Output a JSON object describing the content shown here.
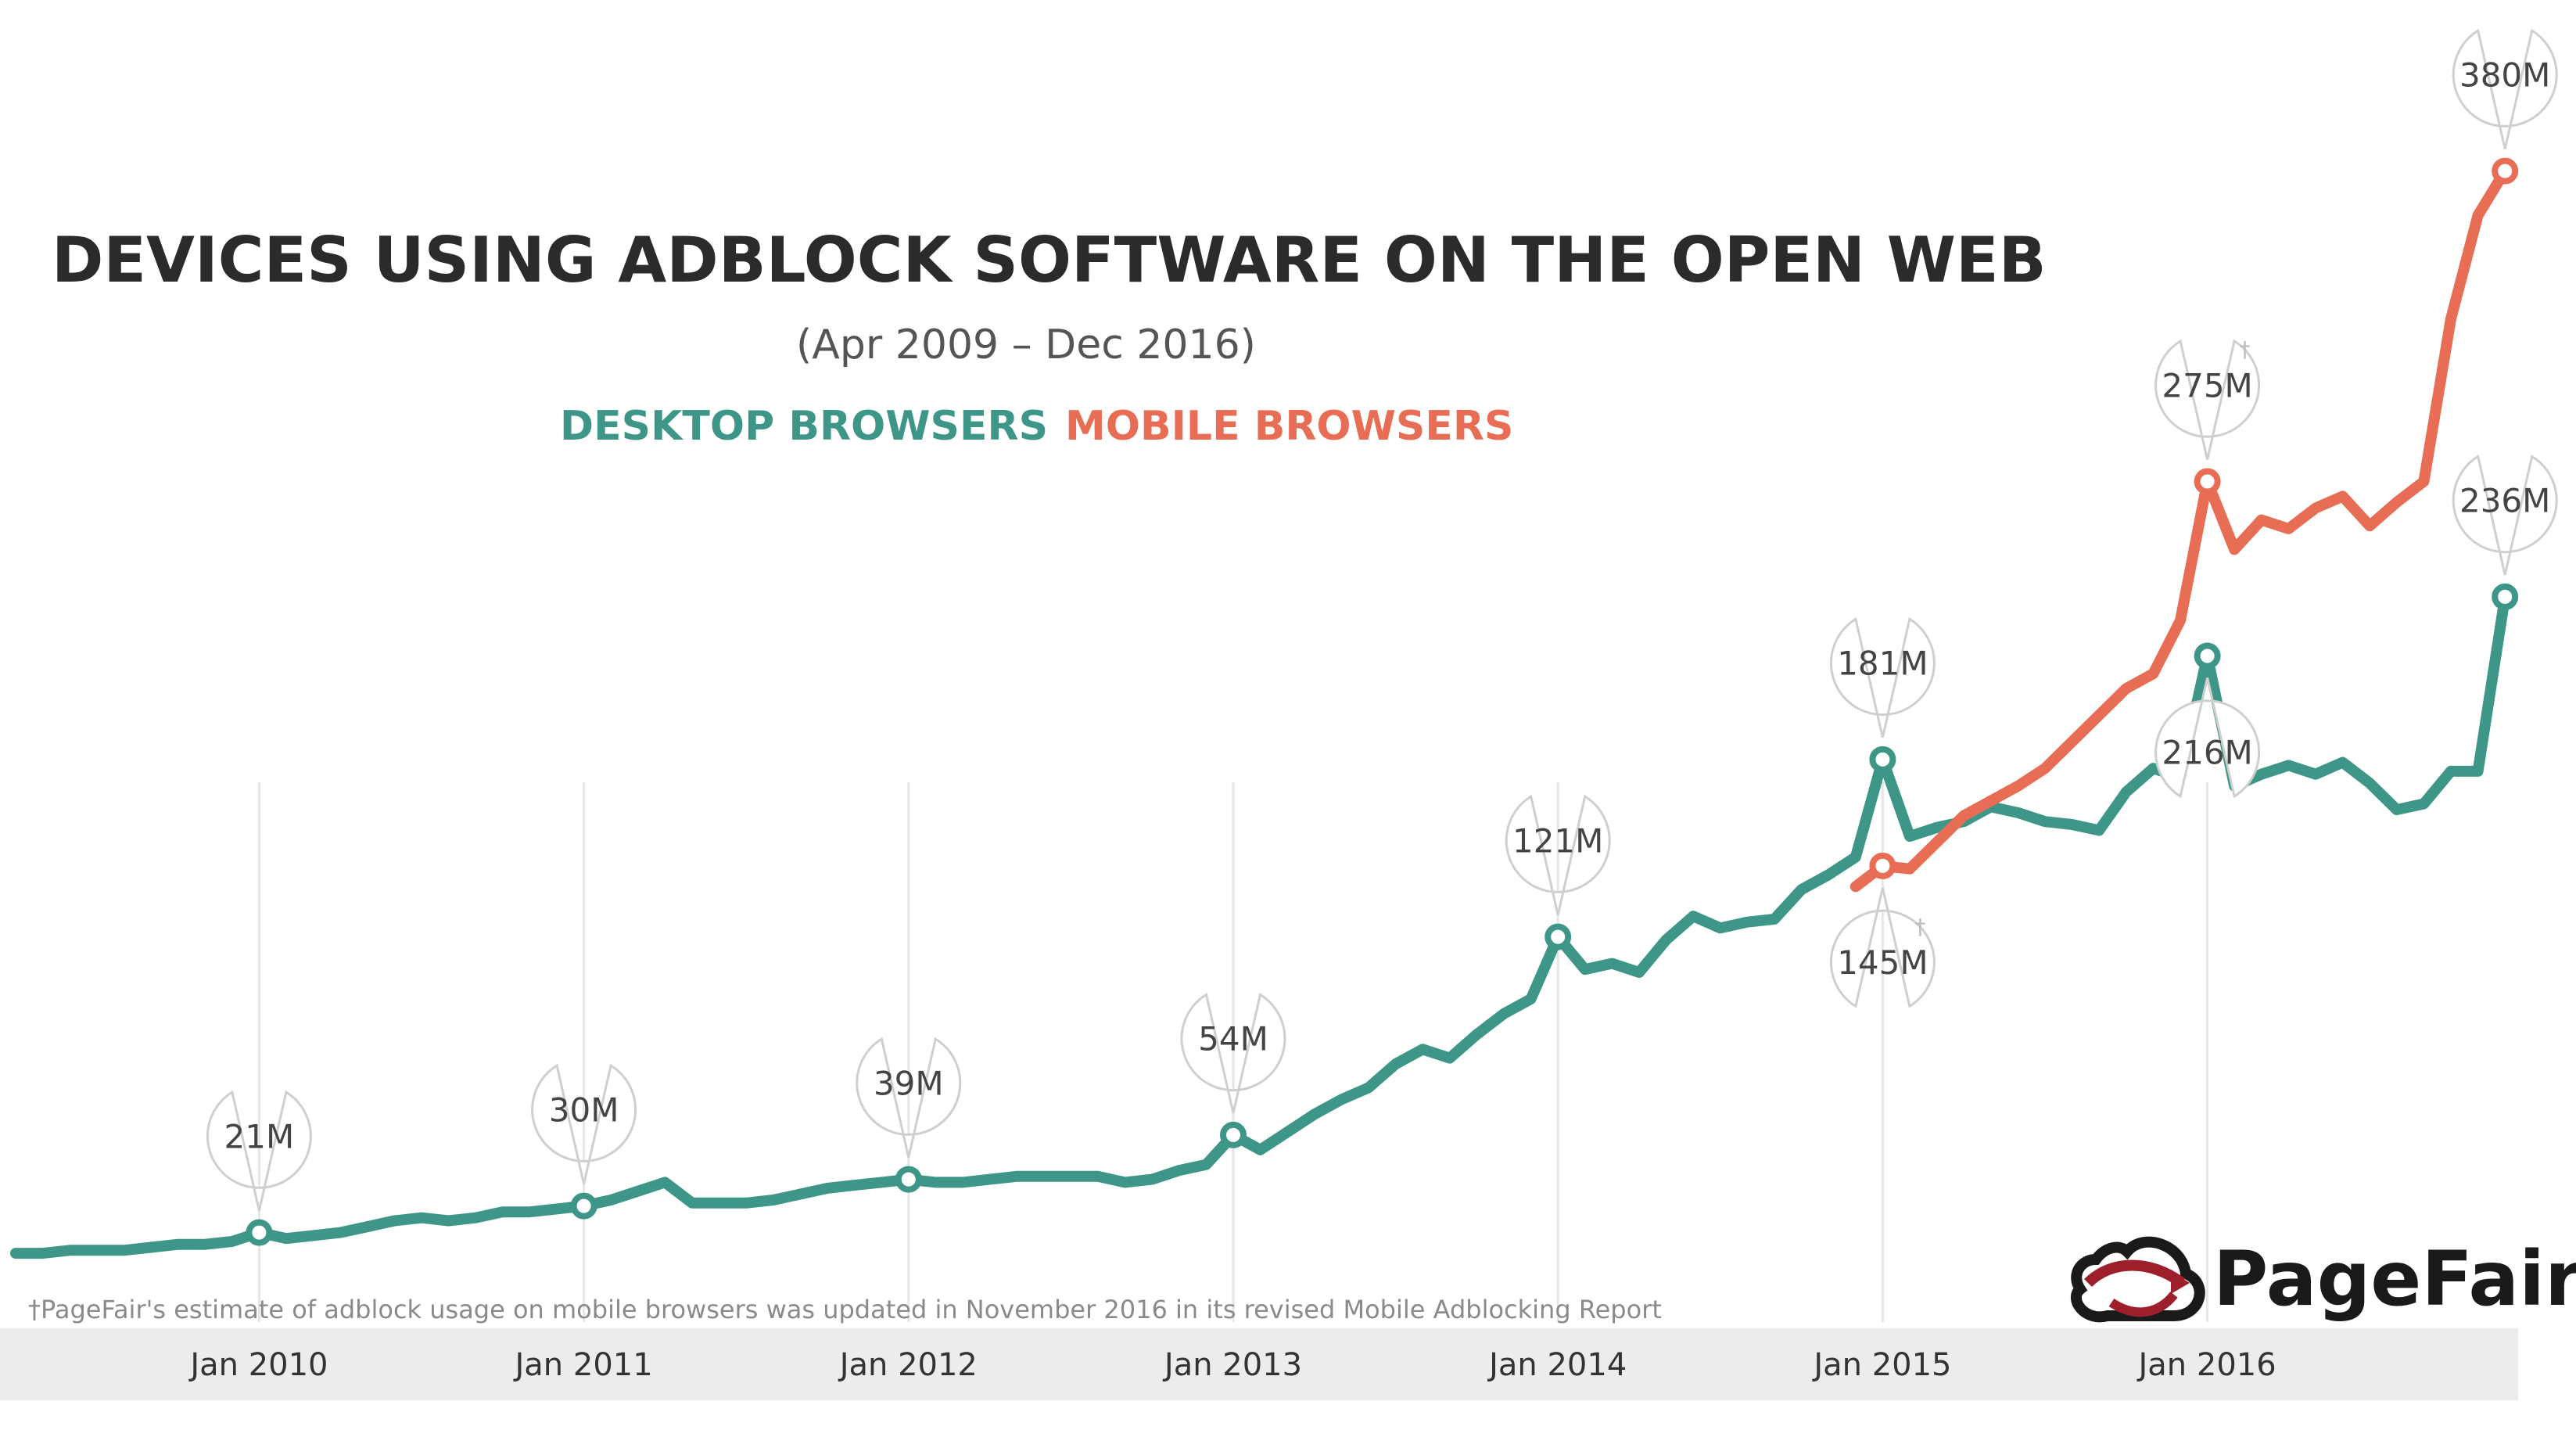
{
  "chart_data": {
    "type": "line",
    "title": "DEVICES USING ADBLOCK SOFTWARE ON THE OPEN WEB",
    "subtitle": "(Apr 2009 – Dec 2016)",
    "legend_position": "top-left",
    "grid": false,
    "x_ticks": [
      "Jan 2010",
      "Jan 2011",
      "Jan 2012",
      "Jan 2013",
      "Jan 2014",
      "Jan 2015",
      "Jan 2016"
    ],
    "xlim": [
      "2009-04",
      "2016-12"
    ],
    "ylim": [
      0,
      400
    ],
    "footnote": "†PageFair's estimate of adblock usage on mobile browsers was updated in November 2016 in its revised Mobile Adblocking Report",
    "brand": "PageFair",
    "colors": {
      "desktop": "#3e9688",
      "mobile": "#e86d55"
    },
    "series": [
      {
        "name": "DESKTOP BROWSERS",
        "color": "#3e9688",
        "points": [
          [
            "2009-04",
            14
          ],
          [
            "2009-05",
            14
          ],
          [
            "2009-06",
            15
          ],
          [
            "2009-07",
            15
          ],
          [
            "2009-08",
            15
          ],
          [
            "2009-09",
            16
          ],
          [
            "2009-10",
            17
          ],
          [
            "2009-11",
            17
          ],
          [
            "2009-12",
            18
          ],
          [
            "2010-01",
            21
          ],
          [
            "2010-02",
            19
          ],
          [
            "2010-03",
            20
          ],
          [
            "2010-04",
            21
          ],
          [
            "2010-05",
            23
          ],
          [
            "2010-06",
            25
          ],
          [
            "2010-07",
            26
          ],
          [
            "2010-08",
            25
          ],
          [
            "2010-09",
            26
          ],
          [
            "2010-10",
            28
          ],
          [
            "2010-11",
            28
          ],
          [
            "2010-12",
            29
          ],
          [
            "2011-01",
            30
          ],
          [
            "2011-02",
            32
          ],
          [
            "2011-03",
            35
          ],
          [
            "2011-04",
            38
          ],
          [
            "2011-05",
            31
          ],
          [
            "2011-06",
            31
          ],
          [
            "2011-07",
            31
          ],
          [
            "2011-08",
            32
          ],
          [
            "2011-09",
            34
          ],
          [
            "2011-10",
            36
          ],
          [
            "2011-11",
            37
          ],
          [
            "2011-12",
            38
          ],
          [
            "2012-01",
            39
          ],
          [
            "2012-02",
            38
          ],
          [
            "2012-03",
            38
          ],
          [
            "2012-04",
            39
          ],
          [
            "2012-05",
            40
          ],
          [
            "2012-06",
            40
          ],
          [
            "2012-07",
            40
          ],
          [
            "2012-08",
            40
          ],
          [
            "2012-09",
            38
          ],
          [
            "2012-10",
            39
          ],
          [
            "2012-11",
            42
          ],
          [
            "2012-12",
            44
          ],
          [
            "2013-01",
            54
          ],
          [
            "2013-02",
            49
          ],
          [
            "2013-03",
            55
          ],
          [
            "2013-04",
            61
          ],
          [
            "2013-05",
            66
          ],
          [
            "2013-06",
            70
          ],
          [
            "2013-07",
            78
          ],
          [
            "2013-08",
            83
          ],
          [
            "2013-09",
            80
          ],
          [
            "2013-10",
            88
          ],
          [
            "2013-11",
            95
          ],
          [
            "2013-12",
            100
          ],
          [
            "2014-01",
            121
          ],
          [
            "2014-02",
            110
          ],
          [
            "2014-03",
            112
          ],
          [
            "2014-04",
            109
          ],
          [
            "2014-05",
            120
          ],
          [
            "2014-06",
            128
          ],
          [
            "2014-07",
            124
          ],
          [
            "2014-08",
            126
          ],
          [
            "2014-09",
            127
          ],
          [
            "2014-10",
            137
          ],
          [
            "2014-11",
            142
          ],
          [
            "2014-12",
            148
          ],
          [
            "2015-01",
            181
          ],
          [
            "2015-02",
            155
          ],
          [
            "2015-03",
            158
          ],
          [
            "2015-04",
            160
          ],
          [
            "2015-05",
            165
          ],
          [
            "2015-06",
            163
          ],
          [
            "2015-07",
            160
          ],
          [
            "2015-08",
            159
          ],
          [
            "2015-09",
            157
          ],
          [
            "2015-10",
            170
          ],
          [
            "2015-11",
            178
          ],
          [
            "2015-12",
            175
          ],
          [
            "2016-01",
            216
          ],
          [
            "2016-02",
            172
          ],
          [
            "2016-03",
            176
          ],
          [
            "2016-04",
            179
          ],
          [
            "2016-05",
            176
          ],
          [
            "2016-06",
            180
          ],
          [
            "2016-07",
            173
          ],
          [
            "2016-08",
            164
          ],
          [
            "2016-09",
            166
          ],
          [
            "2016-10",
            177
          ],
          [
            "2016-11",
            177
          ],
          [
            "2016-12",
            236
          ]
        ]
      },
      {
        "name": "MOBILE BROWSERS",
        "color": "#e86d55",
        "points": [
          [
            "2014-12",
            138
          ],
          [
            "2015-01",
            145
          ],
          [
            "2015-02",
            144
          ],
          [
            "2015-03",
            153
          ],
          [
            "2015-04",
            162
          ],
          [
            "2015-05",
            167
          ],
          [
            "2015-06",
            172
          ],
          [
            "2015-07",
            178
          ],
          [
            "2015-08",
            187
          ],
          [
            "2015-09",
            196
          ],
          [
            "2015-10",
            205
          ],
          [
            "2015-11",
            210
          ],
          [
            "2015-12",
            228
          ],
          [
            "2016-01",
            275
          ],
          [
            "2016-02",
            252
          ],
          [
            "2016-03",
            262
          ],
          [
            "2016-04",
            259
          ],
          [
            "2016-05",
            266
          ],
          [
            "2016-06",
            270
          ],
          [
            "2016-07",
            260
          ],
          [
            "2016-08",
            268
          ],
          [
            "2016-09",
            275
          ],
          [
            "2016-10",
            330
          ],
          [
            "2016-11",
            365
          ],
          [
            "2016-12",
            380
          ]
        ]
      }
    ],
    "annotations": [
      {
        "series": "DESKTOP BROWSERS",
        "x": "2010-01",
        "y": 21,
        "label": "21M",
        "placement": "above",
        "dagger": false
      },
      {
        "series": "DESKTOP BROWSERS",
        "x": "2011-01",
        "y": 30,
        "label": "30M",
        "placement": "above",
        "dagger": false
      },
      {
        "series": "DESKTOP BROWSERS",
        "x": "2012-01",
        "y": 39,
        "label": "39M",
        "placement": "above",
        "dagger": false
      },
      {
        "series": "DESKTOP BROWSERS",
        "x": "2013-01",
        "y": 54,
        "label": "54M",
        "placement": "above",
        "dagger": false
      },
      {
        "series": "DESKTOP BROWSERS",
        "x": "2014-01",
        "y": 121,
        "label": "121M",
        "placement": "above",
        "dagger": false
      },
      {
        "series": "DESKTOP BROWSERS",
        "x": "2015-01",
        "y": 181,
        "label": "181M",
        "placement": "above",
        "dagger": false
      },
      {
        "series": "MOBILE BROWSERS",
        "x": "2015-01",
        "y": 145,
        "label": "145M",
        "placement": "below",
        "dagger": true
      },
      {
        "series": "DESKTOP BROWSERS",
        "x": "2016-01",
        "y": 216,
        "label": "216M",
        "placement": "below",
        "dagger": false
      },
      {
        "series": "MOBILE BROWSERS",
        "x": "2016-01",
        "y": 275,
        "label": "275M",
        "placement": "above",
        "dagger": true
      },
      {
        "series": "DESKTOP BROWSERS",
        "x": "2016-12",
        "y": 236,
        "label": "236M",
        "placement": "above",
        "dagger": false
      },
      {
        "series": "MOBILE BROWSERS",
        "x": "2016-12",
        "y": 380,
        "label": "380M",
        "placement": "above",
        "dagger": false
      }
    ]
  }
}
